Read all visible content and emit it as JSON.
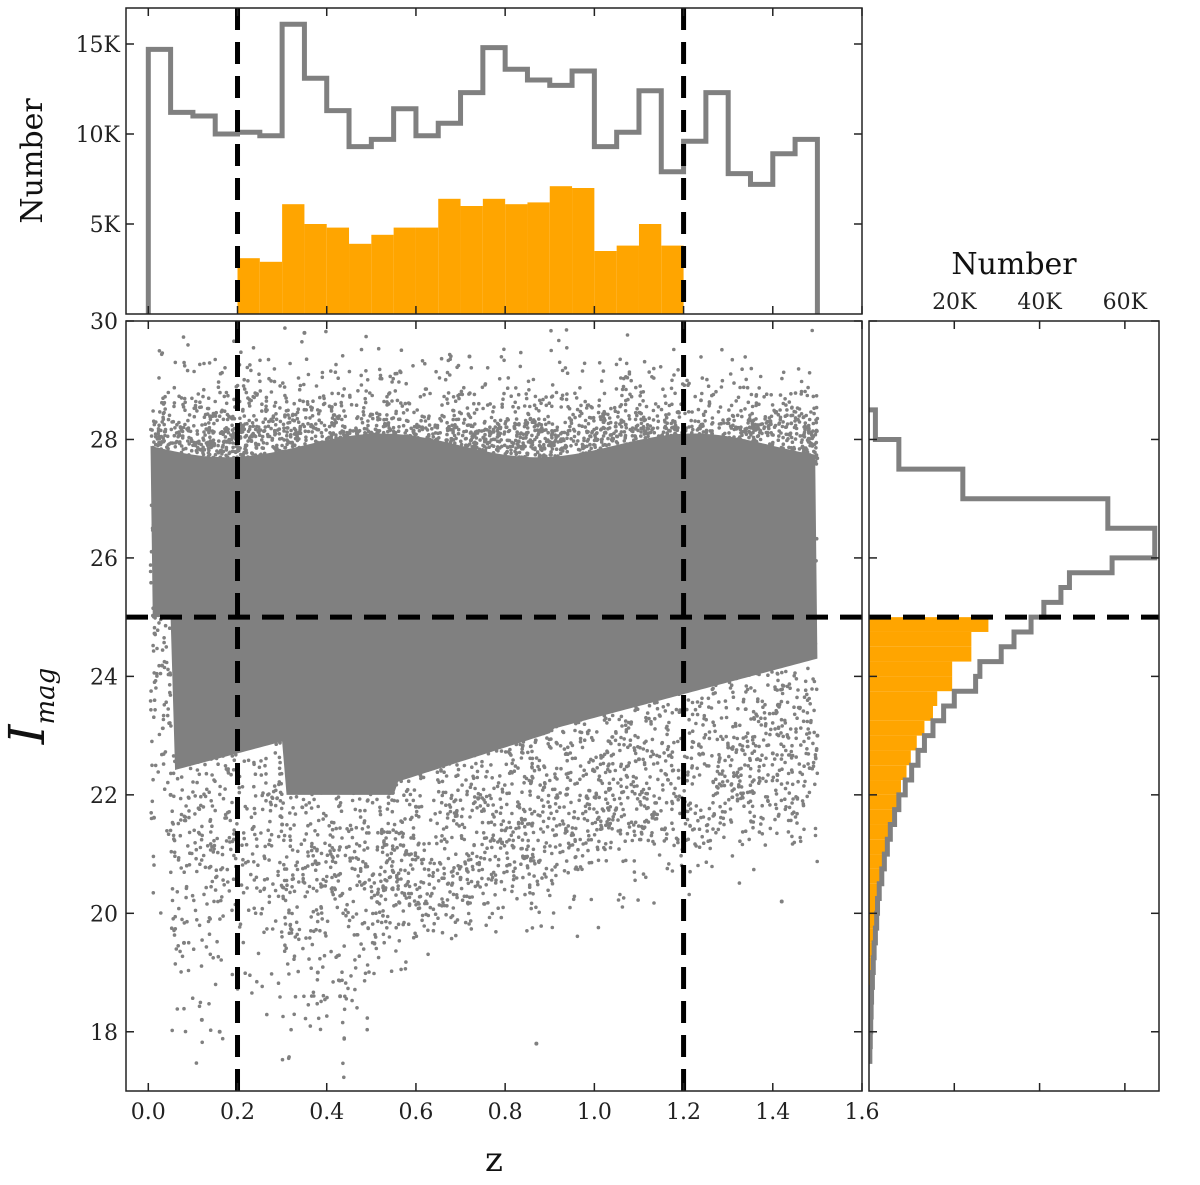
{
  "colors": {
    "all": "#808080",
    "selected": "#FFA500",
    "cut": "#000000"
  },
  "chart_data": [
    {
      "panel": "top-histogram",
      "type": "histogram",
      "ylabel": "Number",
      "xlim": [
        -0.05,
        1.6
      ],
      "ylim": [
        0,
        17000
      ],
      "yticks": [
        5000,
        10000,
        15000
      ],
      "ytick_labels": [
        "5K",
        "10K",
        "15K"
      ],
      "bin_edges": [
        0.0,
        0.05,
        0.1,
        0.15,
        0.2,
        0.25,
        0.3,
        0.35,
        0.4,
        0.45,
        0.5,
        0.55,
        0.6,
        0.65,
        0.7,
        0.75,
        0.8,
        0.85,
        0.9,
        0.95,
        1.0,
        1.05,
        1.1,
        1.15,
        1.2,
        1.25,
        1.3,
        1.35,
        1.4,
        1.45,
        1.5
      ],
      "series": [
        {
          "style": "step",
          "color": "#808080",
          "values": [
            14700,
            11200,
            11000,
            10000,
            10100,
            9900,
            16100,
            13100,
            11300,
            9300,
            9700,
            11400,
            9900,
            10600,
            12300,
            14800,
            13600,
            13000,
            12700,
            13500,
            9300,
            10100,
            12400,
            7900,
            9600,
            12300,
            7800,
            7200,
            8900,
            9700
          ]
        },
        {
          "style": "filled",
          "color": "#FFA500",
          "values": [
            0,
            0,
            0,
            0,
            3100,
            2900,
            6100,
            5000,
            4800,
            3900,
            4400,
            4800,
            4800,
            6400,
            6000,
            6400,
            6100,
            6200,
            7100,
            7000,
            3500,
            3800,
            5000,
            3800,
            0,
            0,
            0,
            0,
            0,
            0
          ]
        }
      ],
      "cuts_x": [
        0.2,
        1.2
      ]
    },
    {
      "panel": "scatter",
      "type": "scatter",
      "xlabel": "z",
      "ylabel_main": "I",
      "ylabel_sub": "mag",
      "xlim": [
        -0.05,
        1.6
      ],
      "ylim": [
        17,
        30
      ],
      "xticks": [
        0.0,
        0.2,
        0.4,
        0.6,
        0.8,
        1.0,
        1.2,
        1.4,
        1.6
      ],
      "xtick_labels": [
        "0.0",
        "0.2",
        "0.4",
        "0.6",
        "0.8",
        "1.0",
        "1.2",
        "1.4",
        "1.6"
      ],
      "yticks": [
        18,
        20,
        22,
        24,
        26,
        28,
        30
      ],
      "ytick_labels": [
        "18",
        "20",
        "22",
        "24",
        "26",
        "28",
        "30"
      ],
      "point_color": "#808080",
      "cuts_x": [
        0.2,
        1.2
      ],
      "cut_y": 25,
      "sample_points": [
        [
          0.01,
          26.5
        ],
        [
          0.05,
          22.0
        ],
        [
          0.08,
          19.5
        ],
        [
          0.12,
          18.2
        ],
        [
          0.16,
          18.0
        ],
        [
          0.22,
          27.9
        ],
        [
          0.3,
          21.5
        ],
        [
          0.38,
          19.0
        ],
        [
          0.43,
          18.6
        ],
        [
          0.5,
          27.5
        ],
        [
          0.6,
          21.8
        ],
        [
          0.7,
          20.6
        ],
        [
          0.8,
          21.4
        ],
        [
          0.9,
          21.8
        ],
        [
          1.0,
          22.4
        ],
        [
          1.1,
          22.6
        ],
        [
          1.2,
          23.5
        ],
        [
          1.3,
          22.8
        ],
        [
          1.4,
          22.7
        ],
        [
          1.5,
          23.0
        ],
        [
          0.87,
          17.8
        ],
        [
          1.42,
          20.2
        ],
        [
          0.72,
          29.4
        ],
        [
          0.35,
          29.8
        ]
      ]
    },
    {
      "panel": "right-histogram",
      "type": "histogram",
      "orientation": "horizontal",
      "xlabel": "Number",
      "xlim": [
        0,
        68000
      ],
      "xticks": [
        20000,
        40000,
        60000
      ],
      "xtick_labels": [
        "20K",
        "40K",
        "60K"
      ],
      "bin_edges_y": [
        17.5,
        17.75,
        18.0,
        18.25,
        18.5,
        18.75,
        19.0,
        19.25,
        19.5,
        19.75,
        20.0,
        20.25,
        20.5,
        20.75,
        21.0,
        21.25,
        21.5,
        21.75,
        22.0,
        22.25,
        22.5,
        22.75,
        23.0,
        23.25,
        23.5,
        23.75,
        24.0,
        24.25,
        24.5,
        24.75,
        25.0,
        25.25,
        25.5,
        25.75,
        26.0,
        26.25,
        26.5,
        26.75,
        27.0,
        27.25,
        27.5,
        27.75,
        28.0,
        28.25,
        28.5
      ],
      "series": [
        {
          "style": "step",
          "color": "#808080",
          "values": [
            200,
            300,
            400,
            500,
            600,
            800,
            1000,
            1200,
            1500,
            1800,
            2000,
            2400,
            3000,
            3600,
            4300,
            5000,
            6000,
            7000,
            8500,
            10000,
            11500,
            13000,
            15000,
            17500,
            20000,
            25000,
            26000,
            31000,
            34000,
            38000,
            41000,
            45000,
            47000,
            57000,
            67000,
            67000,
            56000,
            56000,
            22000,
            22000,
            7000,
            7000,
            1500,
            1500
          ]
        },
        {
          "style": "filled",
          "color": "#FFA500",
          "values": [
            200,
            300,
            400,
            500,
            600,
            800,
            1000,
            1200,
            1500,
            1800,
            2000,
            2400,
            3000,
            3600,
            4300,
            4800,
            6000,
            6500,
            7500,
            8800,
            9800,
            11200,
            13000,
            15000,
            16000,
            19500,
            19500,
            24000,
            24000,
            28000,
            0,
            0,
            0,
            0,
            0,
            0,
            0,
            0,
            0,
            0,
            0,
            0,
            0,
            0
          ]
        }
      ],
      "cut_y": 25
    }
  ]
}
